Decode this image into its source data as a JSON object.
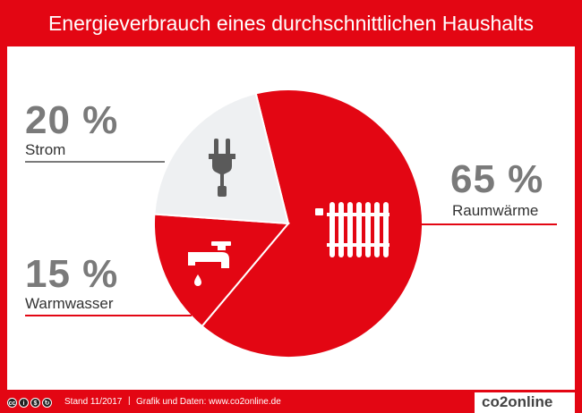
{
  "title": "Energieverbrauch eines durchschnittlichen Haushalts",
  "colors": {
    "brand_red": "#e30613",
    "light_gray": "#eef0f2",
    "icon_gray": "#5a5a5a",
    "text_gray": "#7a7a7a",
    "white": "#ffffff"
  },
  "chart_data": {
    "type": "pie",
    "title": "Energieverbrauch eines durchschnittlichen Haushalts",
    "slices": [
      {
        "label": "Raumwärme",
        "percent_text": "65 %",
        "value": 65,
        "color": "#e30613",
        "icon": "radiator-icon"
      },
      {
        "label": "Warmwasser",
        "percent_text": "15 %",
        "value": 15,
        "color": "#e30613",
        "icon": "faucet-icon"
      },
      {
        "label": "Strom",
        "percent_text": "20 %",
        "value": 20,
        "color": "#eef0f2",
        "icon": "plug-icon"
      }
    ]
  },
  "footer": {
    "license_icons": [
      "cc-icon",
      "by-icon",
      "nc-icon",
      "sa-icon"
    ],
    "stand": "Stand 11/2017",
    "separator": "|",
    "source": "Grafik und Daten: www.co2online.de",
    "brand": "co2online"
  }
}
